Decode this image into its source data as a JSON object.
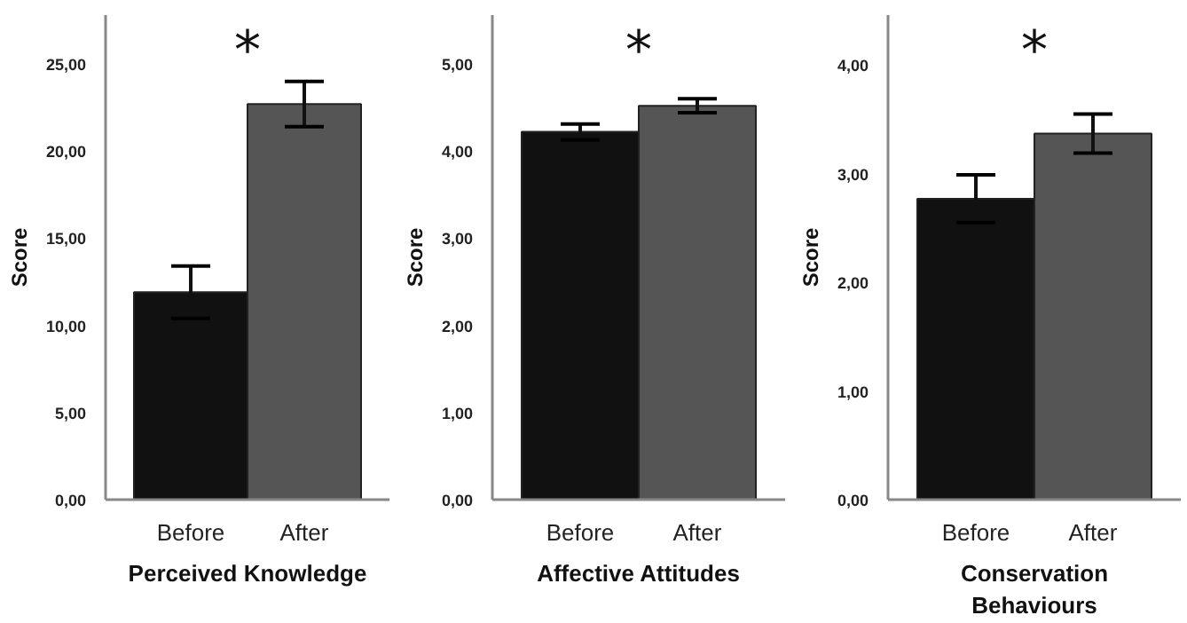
{
  "chart_data": [
    {
      "type": "bar",
      "categories": [
        "Before",
        "After"
      ],
      "values": [
        11.9,
        22.7
      ],
      "errors": [
        1.5,
        1.3
      ],
      "colors": [
        "#111111",
        "#555555"
      ],
      "xlabel": "Perceived Knowledge",
      "ylabel": "Score",
      "ylim": [
        0,
        27.8
      ],
      "yticks": [
        {
          "value": 0,
          "label": "0,00"
        },
        {
          "value": 5,
          "label": "5,00"
        },
        {
          "value": 10,
          "label": "10,00"
        },
        {
          "value": 15,
          "label": "15,00"
        },
        {
          "value": 20,
          "label": "20,00"
        },
        {
          "value": 25,
          "label": "25,00"
        }
      ],
      "annotations": [
        "*"
      ],
      "grid": false
    },
    {
      "type": "bar",
      "categories": [
        "Before",
        "After"
      ],
      "values": [
        4.22,
        4.52
      ],
      "errors": [
        0.09,
        0.08
      ],
      "colors": [
        "#111111",
        "#555555"
      ],
      "xlabel": "Affective Attitudes",
      "ylabel": "Score",
      "ylim": [
        0,
        5.56
      ],
      "yticks": [
        {
          "value": 0,
          "label": "0,00"
        },
        {
          "value": 1,
          "label": "1,00"
        },
        {
          "value": 2,
          "label": "2,00"
        },
        {
          "value": 3,
          "label": "3,00"
        },
        {
          "value": 4,
          "label": "4,00"
        },
        {
          "value": 5,
          "label": "5,00"
        }
      ],
      "annotations": [
        "*"
      ],
      "grid": false
    },
    {
      "type": "bar",
      "categories": [
        "Before",
        "After"
      ],
      "values": [
        2.77,
        3.37
      ],
      "errors": [
        0.22,
        0.18
      ],
      "colors": [
        "#111111",
        "#555555"
      ],
      "xlabel": "Conservation\nBehaviours",
      "ylabel": "Score",
      "ylim": [
        0,
        4.46
      ],
      "yticks": [
        {
          "value": 0,
          "label": "0,00"
        },
        {
          "value": 1,
          "label": "1,00"
        },
        {
          "value": 2,
          "label": "2,00"
        },
        {
          "value": 3,
          "label": "3,00"
        },
        {
          "value": 4,
          "label": "4,00"
        }
      ],
      "annotations": [
        "*"
      ],
      "grid": false
    }
  ]
}
